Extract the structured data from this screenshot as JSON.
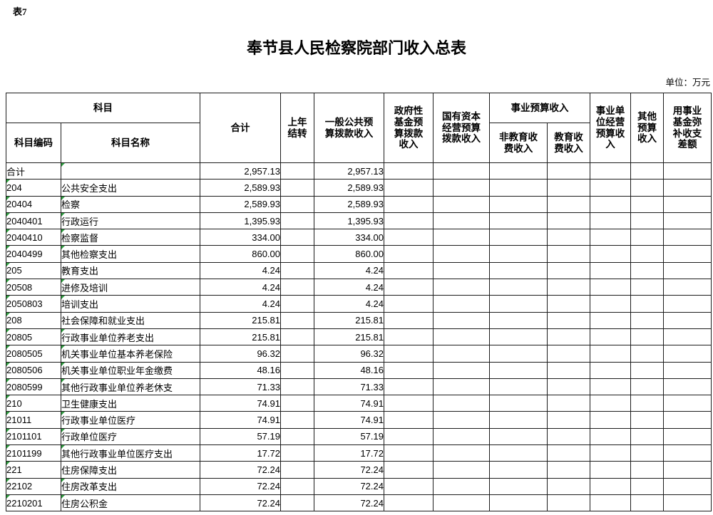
{
  "page": {
    "table_label": "表7",
    "title": "奉节县人民检察院部门收入总表",
    "unit_note": "单位：万元"
  },
  "colors": {
    "text_marker_green": "#2f9e40",
    "border": "#1c1c1c",
    "background": "#ffffff"
  },
  "table": {
    "header": {
      "subject": "科目",
      "subject_code": "科目编码",
      "subject_name": "科目名称",
      "total": "合计",
      "carryover": "上年\n结转",
      "general_public": "一般公共预\n算拨款收入",
      "gov_fund": "政府性\n基金预\n算拨款\n收入",
      "state_capital": "国有资本\n经营预算\n拨款收入",
      "business_budget": "事业预算收入",
      "non_edu_fee": "非教育收\n费收入",
      "edu_fee": "教育收\n费收入",
      "business_operation": "事业单\n位经营\n预算收\n入",
      "other": "其他\n预算\n收入",
      "fund_balance": "用事业\n基金弥\n补收支\n差额"
    },
    "value_columns": [
      "total",
      "carryover",
      "general_public",
      "gov_fund",
      "state_capital",
      "non_edu_fee",
      "edu_fee",
      "business_operation",
      "other",
      "fund_balance"
    ],
    "rows": [
      {
        "code": "合计",
        "name": "",
        "level": 0,
        "code_marker": false,
        "name_marker": true,
        "total": "2,957.13",
        "general_public": "2,957.13"
      },
      {
        "code": "204",
        "name": "公共安全支出",
        "level": 0,
        "code_marker": true,
        "name_marker": false,
        "total": "2,589.93",
        "general_public": "2,589.93"
      },
      {
        "code": "20404",
        "name": "检察",
        "level": 1,
        "code_marker": true,
        "name_marker": true,
        "total": "2,589.93",
        "general_public": "2,589.93"
      },
      {
        "code": "2040401",
        "name": "行政运行",
        "level": 2,
        "code_marker": true,
        "name_marker": true,
        "total": "1,395.93",
        "general_public": "1,395.93"
      },
      {
        "code": "2040410",
        "name": "检察监督",
        "level": 2,
        "code_marker": true,
        "name_marker": true,
        "total": "334.00",
        "general_public": "334.00"
      },
      {
        "code": "2040499",
        "name": "其他检察支出",
        "level": 2,
        "code_marker": true,
        "name_marker": true,
        "total": "860.00",
        "general_public": "860.00"
      },
      {
        "code": "205",
        "name": "教育支出",
        "level": 0,
        "code_marker": true,
        "name_marker": false,
        "total": "4.24",
        "general_public": "4.24"
      },
      {
        "code": "20508",
        "name": "进修及培训",
        "level": 1,
        "code_marker": true,
        "name_marker": true,
        "total": "4.24",
        "general_public": "4.24"
      },
      {
        "code": "2050803",
        "name": "培训支出",
        "level": 2,
        "code_marker": true,
        "name_marker": true,
        "total": "4.24",
        "general_public": "4.24"
      },
      {
        "code": "208",
        "name": "社会保障和就业支出",
        "level": 0,
        "code_marker": true,
        "name_marker": false,
        "total": "215.81",
        "general_public": "215.81"
      },
      {
        "code": "20805",
        "name": "行政事业单位养老支出",
        "level": 1,
        "code_marker": true,
        "name_marker": true,
        "total": "215.81",
        "general_public": "215.81"
      },
      {
        "code": "2080505",
        "name": "机关事业单位基本养老保险",
        "level": 2,
        "code_marker": true,
        "name_marker": true,
        "total": "96.32",
        "general_public": "96.32"
      },
      {
        "code": "2080506",
        "name": "机关事业单位职业年金缴费",
        "level": 2,
        "code_marker": true,
        "name_marker": true,
        "total": "48.16",
        "general_public": "48.16"
      },
      {
        "code": "2080599",
        "name": "其他行政事业单位养老休支",
        "level": 2,
        "code_marker": true,
        "name_marker": true,
        "total": "71.33",
        "general_public": "71.33"
      },
      {
        "code": "210",
        "name": "卫生健康支出",
        "level": 0,
        "code_marker": true,
        "name_marker": false,
        "total": "74.91",
        "general_public": "74.91"
      },
      {
        "code": "21011",
        "name": "行政事业单位医疗",
        "level": 1,
        "code_marker": true,
        "name_marker": true,
        "total": "74.91",
        "general_public": "74.91"
      },
      {
        "code": "2101101",
        "name": "行政单位医疗",
        "level": 2,
        "code_marker": true,
        "name_marker": true,
        "total": "57.19",
        "general_public": "57.19"
      },
      {
        "code": "2101199",
        "name": "其他行政事业单位医疗支出",
        "level": 2,
        "code_marker": true,
        "name_marker": true,
        "total": "17.72",
        "general_public": "17.72"
      },
      {
        "code": "221",
        "name": "住房保障支出",
        "level": 0,
        "code_marker": true,
        "name_marker": false,
        "total": "72.24",
        "general_public": "72.24"
      },
      {
        "code": "22102",
        "name": "住房改革支出",
        "level": 1,
        "code_marker": true,
        "name_marker": true,
        "total": "72.24",
        "general_public": "72.24"
      },
      {
        "code": "2210201",
        "name": "住房公积金",
        "level": 2,
        "code_marker": true,
        "name_marker": true,
        "total": "72.24",
        "general_public": "72.24"
      }
    ]
  }
}
